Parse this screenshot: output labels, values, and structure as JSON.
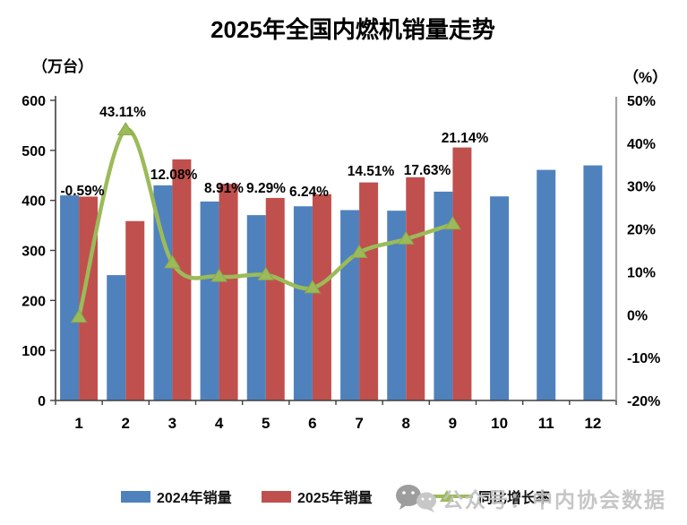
{
  "title": "2025年全国内燃机销量走势",
  "axes": {
    "left_unit": "（万台）",
    "right_unit": "（%）",
    "left_ticks": [
      "0",
      "100",
      "200",
      "300",
      "400",
      "500",
      "600"
    ],
    "right_ticks": [
      "-20%",
      "-10%",
      "0%",
      "10%",
      "20%",
      "30%",
      "40%",
      "50%"
    ],
    "x_labels": [
      "1",
      "2",
      "3",
      "4",
      "5",
      "6",
      "7",
      "8",
      "9",
      "10",
      "11",
      "12"
    ]
  },
  "chart_data": {
    "type": "bar",
    "subtype": "grouped-bars-with-line",
    "title": "2025年全国内燃机销量走势",
    "categories": [
      1,
      2,
      3,
      4,
      5,
      6,
      7,
      8,
      9,
      10,
      11,
      12
    ],
    "left_axis": {
      "label": "（万台）",
      "min": 0,
      "max": 600,
      "step": 100
    },
    "right_axis": {
      "label": "（%）",
      "min": -20,
      "max": 50,
      "step": 10
    },
    "grid": false,
    "legend_position": "bottom",
    "series": [
      {
        "name": "2024年销量",
        "kind": "bar",
        "axis": "left",
        "color": "#4F81BD",
        "values": [
          410.0,
          250.6,
          430.1,
          397.7,
          370.5,
          388.2,
          380.6,
          379.4,
          417.5,
          408,
          461,
          470
        ]
      },
      {
        "name": "2025年销量",
        "kind": "bar",
        "axis": "left",
        "color": "#C0504D",
        "values": [
          407.6,
          358.6,
          482.0,
          433.1,
          404.9,
          412.4,
          435.9,
          446.3,
          505.8,
          null,
          null,
          null
        ]
      },
      {
        "name": "同比增长率",
        "kind": "line",
        "axis": "right",
        "color": "#9BBB59",
        "marker": "triangle",
        "values": [
          -0.59,
          43.11,
          12.08,
          8.91,
          9.29,
          6.24,
          14.51,
          17.63,
          21.14,
          null,
          null,
          null
        ],
        "point_labels": [
          "-0.59%",
          "43.11%",
          "12.08%",
          "8.91%",
          "9.29%",
          "6.24%",
          "14.51%",
          "17.63%",
          "21.14%"
        ]
      }
    ]
  },
  "legend": {
    "items": [
      {
        "label": "2024年销量",
        "color": "#4F81BD",
        "marker": "rect"
      },
      {
        "label": "2025年销量",
        "color": "#C0504D",
        "marker": "rect"
      },
      {
        "label": "同比增长率",
        "color": "#9BBB59",
        "marker": "line-triangle"
      }
    ]
  },
  "watermark": {
    "text": "公众号：中内协会数据"
  }
}
